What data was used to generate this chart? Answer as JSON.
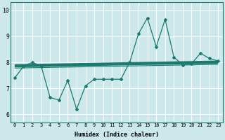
{
  "x_values": [
    0,
    1,
    2,
    3,
    4,
    5,
    6,
    7,
    8,
    9,
    10,
    11,
    12,
    13,
    14,
    15,
    16,
    17,
    18,
    19,
    20,
    21,
    22,
    23
  ],
  "y_values": [
    7.4,
    7.85,
    8.0,
    7.85,
    6.65,
    6.55,
    7.3,
    6.2,
    7.1,
    7.35,
    7.35,
    7.35,
    7.35,
    8.0,
    9.1,
    9.7,
    8.6,
    9.65,
    8.2,
    7.9,
    7.95,
    8.35,
    8.15,
    8.05
  ],
  "reg1_y_start": 7.88,
  "reg1_y_end": 8.02,
  "reg2_y_start": 7.83,
  "reg2_y_end": 7.97,
  "xlabel": "Humidex (Indice chaleur)",
  "ylim_min": 5.7,
  "ylim_max": 10.3,
  "xlim_min": -0.5,
  "xlim_max": 23.5,
  "line_color": "#1a7a6e",
  "bg_color": "#cce8ea",
  "grid_color": "#ffffff",
  "text_color": "#000000",
  "yticks": [
    6,
    7,
    8,
    9,
    10
  ],
  "xticks": [
    0,
    1,
    2,
    3,
    4,
    5,
    6,
    7,
    8,
    9,
    10,
    11,
    12,
    13,
    14,
    15,
    16,
    17,
    18,
    19,
    20,
    21,
    22,
    23
  ]
}
